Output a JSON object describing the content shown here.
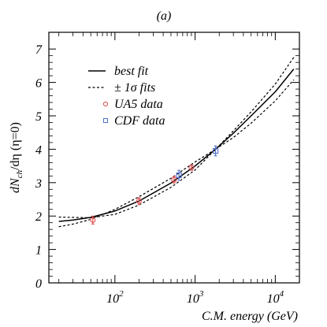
{
  "panel_label": "(a)",
  "chart_data": {
    "type": "line",
    "title": "(a)",
    "xlabel": "C.M. energy (GeV)",
    "ylabel_parts": {
      "main": "dN",
      "sub": "ch",
      "tail": "/dη (η=0)"
    },
    "x_scale": "log",
    "xlim": [
      15,
      20000
    ],
    "ylim": [
      0,
      7.5
    ],
    "x_ticks": [
      {
        "value": 100,
        "base": "10",
        "exp": "2"
      },
      {
        "value": 1000,
        "base": "10",
        "exp": "3"
      },
      {
        "value": 10000,
        "base": "10",
        "exp": "4"
      }
    ],
    "y_ticks": [
      "0",
      "1",
      "2",
      "3",
      "4",
      "5",
      "6",
      "7"
    ],
    "legend": {
      "placement": "top-left",
      "entries": [
        {
          "label": "best fit",
          "marker": "solid-line"
        },
        {
          "label": "± 1σ fits",
          "marker": "dotted-line"
        },
        {
          "label": "UA5 data",
          "marker": "circle",
          "color": "#e05050"
        },
        {
          "label": "CDF data",
          "marker": "square",
          "color": "#5070d0"
        }
      ]
    },
    "series": [
      {
        "name": "best fit",
        "style": "solid",
        "x": [
          20,
          30,
          50,
          100,
          200,
          500,
          1000,
          1800,
          3000,
          5000,
          10000,
          17000
        ],
        "y": [
          1.84,
          1.88,
          1.96,
          2.15,
          2.45,
          2.99,
          3.5,
          4.0,
          4.48,
          5.0,
          5.72,
          6.4
        ]
      },
      {
        "name": "± 1σ fits (upper)",
        "style": "dotted",
        "x": [
          20,
          30,
          50,
          100,
          200,
          500,
          1000,
          1800,
          3000,
          5000,
          10000,
          17000
        ],
        "y": [
          1.68,
          1.76,
          1.9,
          2.2,
          2.58,
          3.13,
          3.62,
          4.0,
          4.55,
          5.12,
          5.95,
          6.75
        ]
      },
      {
        "name": "± 1σ fits (lower)",
        "style": "dotted",
        "x": [
          20,
          30,
          50,
          100,
          200,
          500,
          1000,
          1800,
          3000,
          5000,
          10000,
          17000
        ],
        "y": [
          1.97,
          1.96,
          1.95,
          2.05,
          2.33,
          2.86,
          3.38,
          4.0,
          4.35,
          4.78,
          5.45,
          6.08
        ]
      }
    ],
    "ua5_data": {
      "color": "#e05050",
      "points": [
        {
          "x": 53,
          "y": 1.88,
          "err": 0.12
        },
        {
          "x": 200,
          "y": 2.45,
          "err": 0.1
        },
        {
          "x": 546,
          "y": 3.09,
          "err": 0.1
        },
        {
          "x": 900,
          "y": 3.45,
          "err": 0.08
        }
      ]
    },
    "cdf_data": {
      "color": "#5070d0",
      "points": [
        {
          "x": 630,
          "y": 3.22,
          "err": 0.15
        },
        {
          "x": 1800,
          "y": 3.95,
          "err": 0.15
        }
      ]
    }
  }
}
